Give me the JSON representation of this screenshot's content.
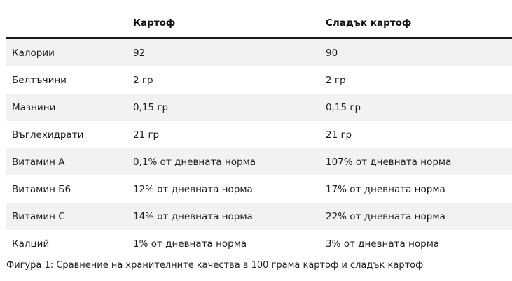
{
  "table": {
    "headers": [
      "",
      "Картоф",
      "Сладък картоф"
    ],
    "rows": [
      [
        "Калории",
        "92",
        "90"
      ],
      [
        "Белтъчини",
        "2 гр",
        "2 гр"
      ],
      [
        "Мазнини",
        "0,15 гр",
        "0,15 гр"
      ],
      [
        "Въглехидрати",
        "21 гр",
        "21 гр"
      ],
      [
        "Витамин А",
        "0,1% от дневната норма",
        "107% от дневната норма"
      ],
      [
        "Витамин Б6",
        "12% от дневната норма",
        "17% от дневната норма"
      ],
      [
        "Витамин С",
        "14% от дневната норма",
        "22% от дневната норма"
      ],
      [
        "Калций",
        "1% от дневната норма",
        "3% от дневната норма"
      ]
    ]
  },
  "caption": "Фигура 1: Сравнение на хранителните качества в 100 грама картоф и сладък картоф"
}
